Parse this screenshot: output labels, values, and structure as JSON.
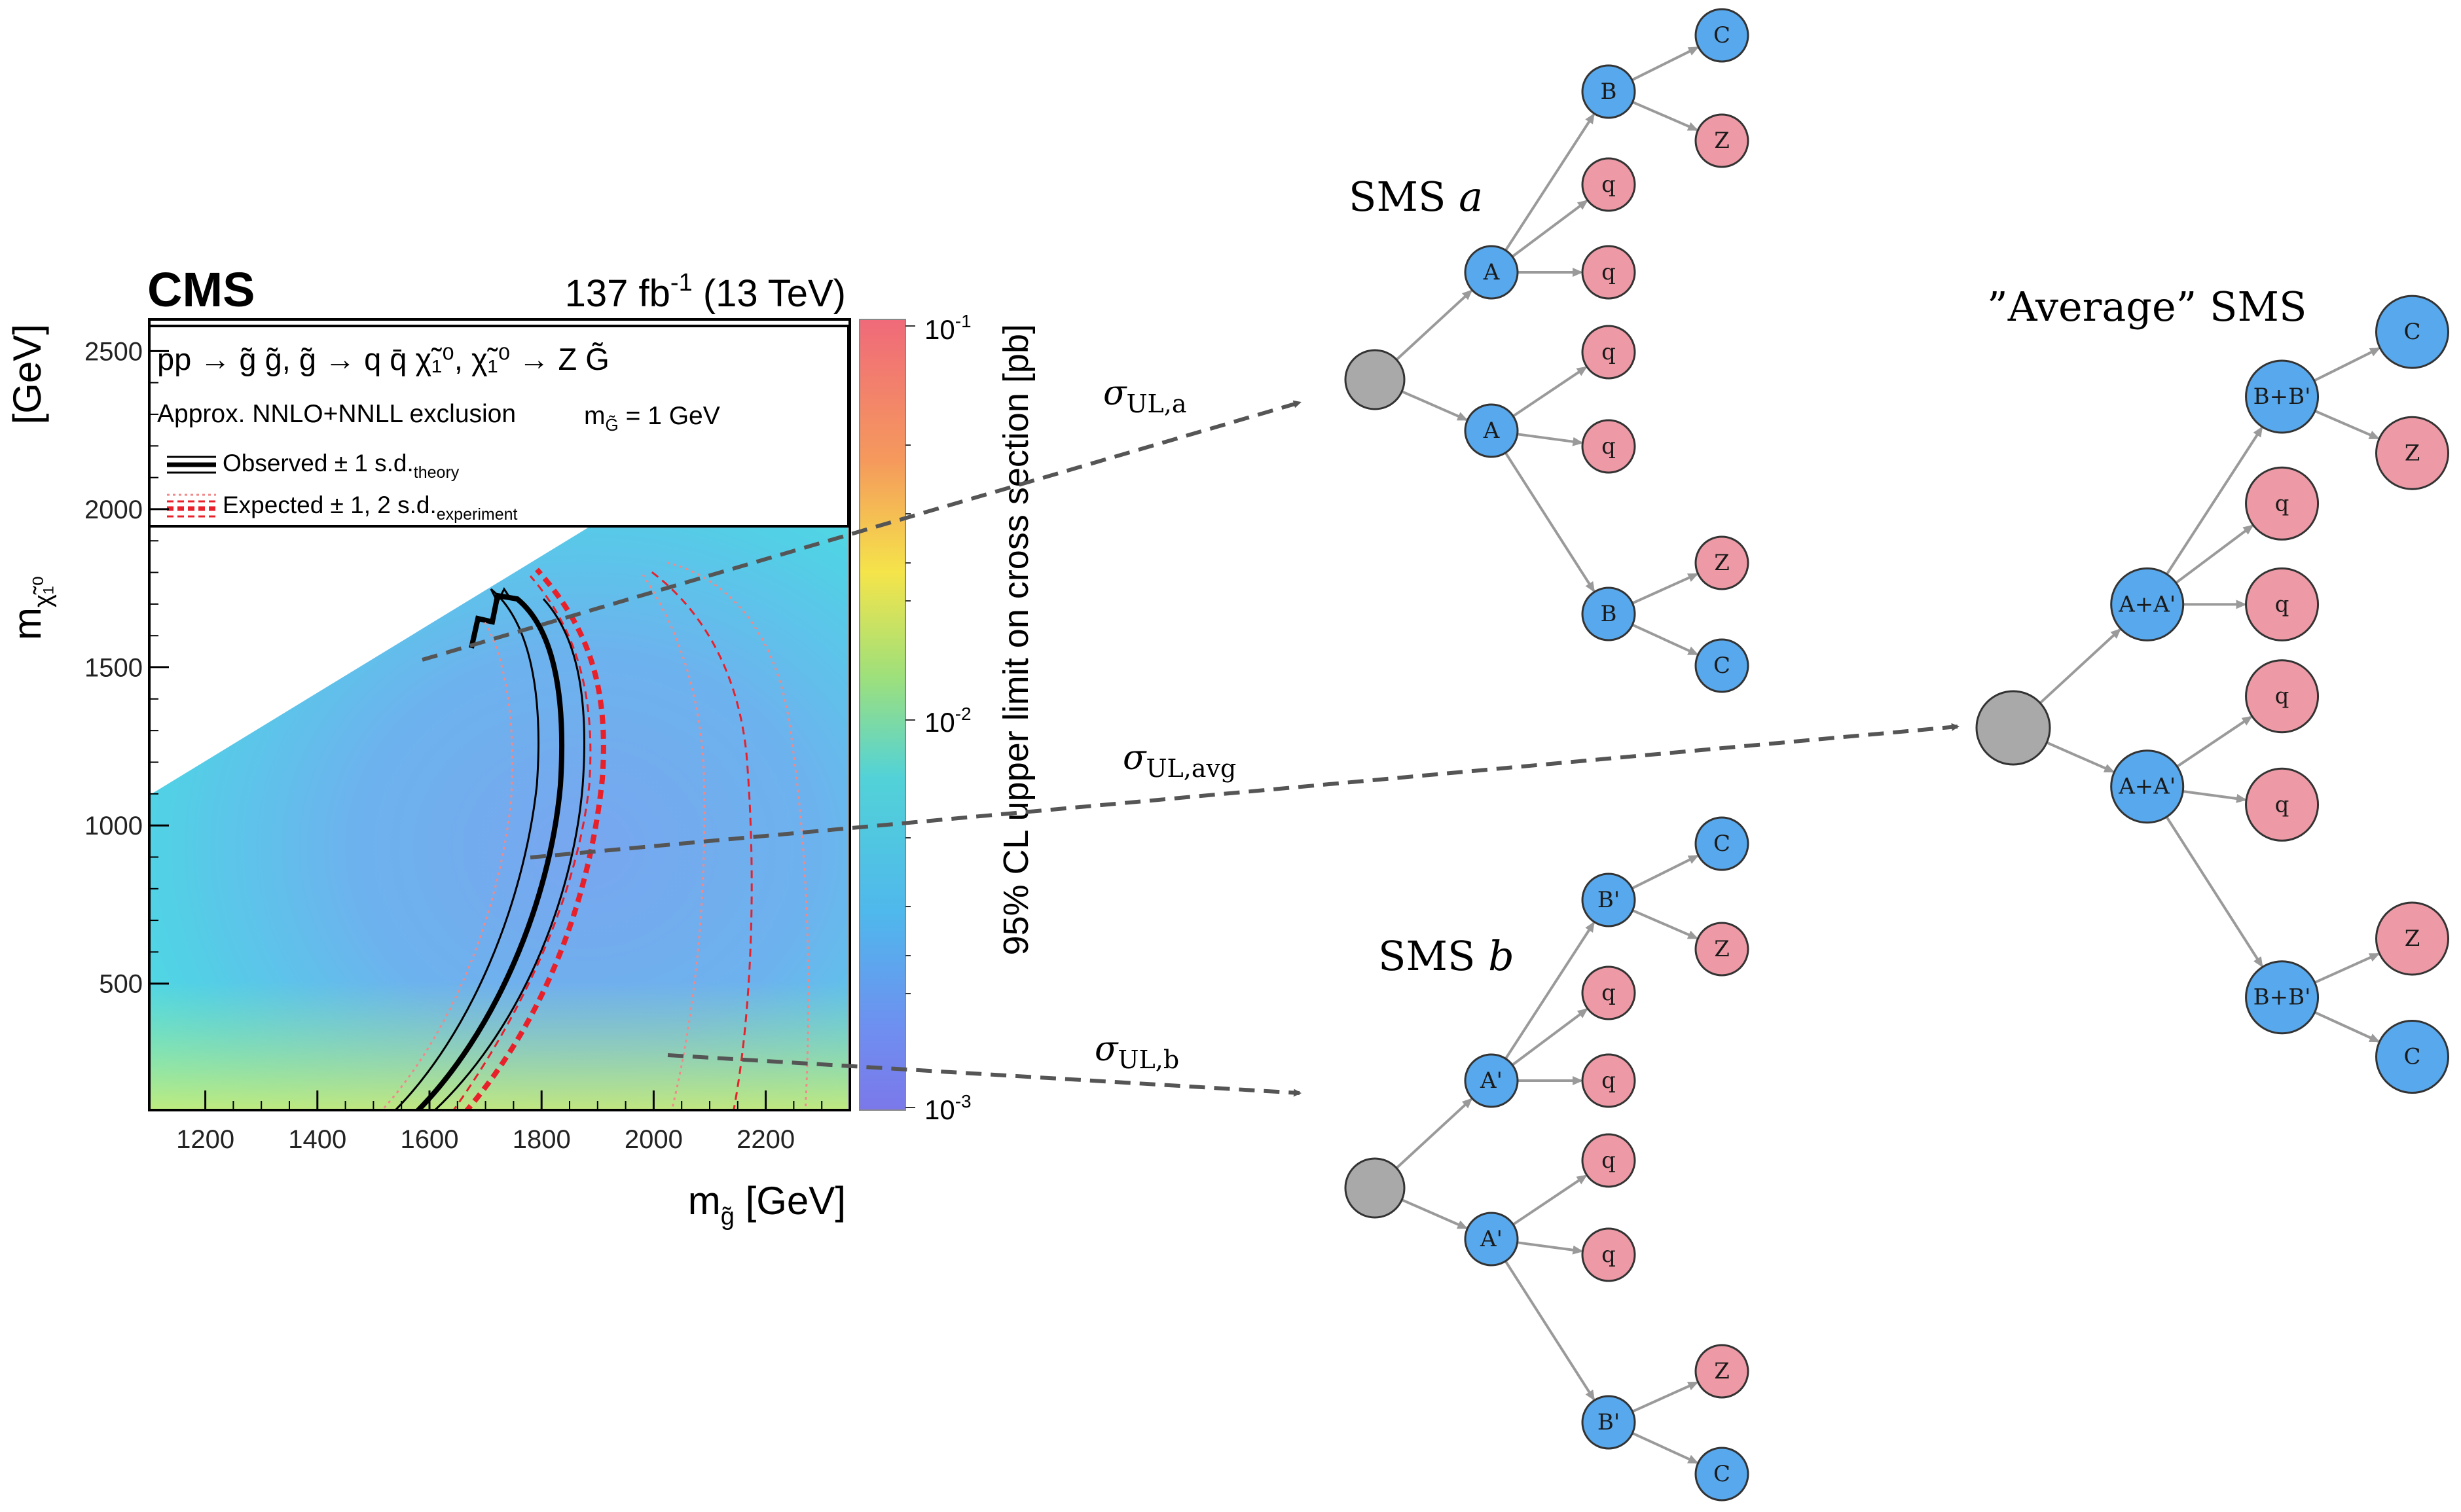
{
  "cms_plot": {
    "brand": "CMS",
    "luminosity": "137 fb",
    "lumi_exp": "-1",
    "energy": "(13 TeV)",
    "process": "pp → g̃ g̃, g̃ → q q̄ χ̃₁⁰, χ̃₁⁰ → Z G̃",
    "exclusion": "Approx. NNLO+NNLL exclusion",
    "gravitino_mass": "m",
    "gravitino_sub": "G̃",
    "gravitino_val": "= 1 GeV",
    "legend_observed": "Observed ± 1 s.d.",
    "legend_observed_sub": "theory",
    "legend_expected": "Expected ± 1, 2 s.d.",
    "legend_expected_sub": "experiment",
    "x_label": "m",
    "x_label_sub": "g̃",
    "x_label_unit": "[GeV]",
    "y_label": "m",
    "y_label_sub": "χ̃₁⁰",
    "y_label_unit": "[GeV]",
    "z_label": "95% CL upper limit on cross section [pb]",
    "x_ticks": [
      "1200",
      "1400",
      "1600",
      "1800",
      "2000",
      "2200"
    ],
    "y_ticks": [
      "500",
      "1000",
      "1500",
      "2000",
      "2500"
    ],
    "z_ticks": [
      {
        "base": "10",
        "exp": "-1"
      },
      {
        "base": "10",
        "exp": "-2"
      },
      {
        "base": "10",
        "exp": "-3"
      }
    ],
    "colors": {
      "scale_top": "#f2777a",
      "scale_mid": "#4ecde6",
      "scale_low": "#7b85e8",
      "observed": "#000000",
      "expected": "#e8202a"
    }
  },
  "chart_data": {
    "type": "heatmap",
    "x_range": [
      1100,
      2350
    ],
    "y_range": [
      100,
      2600
    ],
    "z_range": [
      0.001,
      0.1
    ],
    "z_scale": "log"
  },
  "arrows": {
    "sigma_a": "σ",
    "sigma_a_sub": "UL,a",
    "sigma_avg": "σ",
    "sigma_avg_sub": "UL,avg",
    "sigma_b": "σ",
    "sigma_b_sub": "UL,b"
  },
  "trees": {
    "sms_a_title": "SMS ",
    "sms_a_var": "a",
    "sms_b_title": "SMS ",
    "sms_b_var": "b",
    "avg_title": "”Average” SMS",
    "sms_a": {
      "A1": "A",
      "A2": "A",
      "B1": "B",
      "B2": "B",
      "q1": "q",
      "q2": "q",
      "q3": "q",
      "q4": "q",
      "C1": "C",
      "Z1": "Z",
      "Z2": "Z",
      "C2": "C"
    },
    "sms_b": {
      "A1": "A'",
      "A2": "A'",
      "B1": "B'",
      "B2": "B'",
      "q1": "q",
      "q2": "q",
      "q3": "q",
      "q4": "q",
      "C1": "C",
      "Z1": "Z",
      "Z2": "Z",
      "C2": "C"
    },
    "avg": {
      "A1": "A+A'",
      "A2": "A+A'",
      "B1": "B+B'",
      "B2": "B+B'",
      "q1": "q",
      "q2": "q",
      "q3": "q",
      "q4": "q",
      "C1": "C",
      "Z1": "Z",
      "Z2": "Z",
      "C2": "C"
    },
    "colors": {
      "blue": "#57a8ec",
      "pink": "#ee9aa6",
      "gray": "#a9a9a9",
      "edge": "#9a9a9a"
    }
  }
}
